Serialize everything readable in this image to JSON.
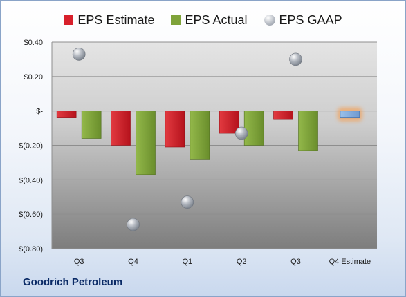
{
  "chart_data": {
    "type": "bar",
    "categories": [
      "Q3",
      "Q4",
      "Q1",
      "Q2",
      "Q3",
      "Q4 Estimate"
    ],
    "series": [
      {
        "name": "EPS Estimate",
        "values": [
          -0.04,
          -0.2,
          -0.21,
          -0.13,
          -0.05,
          null
        ],
        "color": "#d8202b"
      },
      {
        "name": "EPS Actual",
        "values": [
          -0.16,
          -0.37,
          -0.28,
          -0.2,
          -0.23,
          null
        ],
        "color": "#7fa33a"
      },
      {
        "name": "EPS GAAP",
        "type": "scatter",
        "values": [
          0.33,
          -0.66,
          -0.53,
          -0.13,
          0.3,
          null
        ],
        "color": "#a9aeb6"
      }
    ],
    "forecast": {
      "category": "Q4 Estimate",
      "value": -0.04,
      "color": "#7ea6d8",
      "glow": "#f2a25c"
    },
    "y_ticks": [
      0.4,
      0.2,
      0,
      -0.2,
      -0.4,
      -0.6,
      -0.8
    ],
    "y_tick_labels": [
      "$0.40",
      "$0.20",
      "$-",
      "$(0.20)",
      "$(0.40)",
      "$(0.60)",
      "$(0.80)"
    ],
    "ylim": [
      -0.8,
      0.4
    ],
    "grid": true,
    "legend_position": "top"
  },
  "legend": {
    "estimate": "EPS Estimate",
    "actual": "EPS Actual",
    "gaap": "EPS GAAP"
  },
  "footer": {
    "company": "Goodrich Petroleum"
  }
}
